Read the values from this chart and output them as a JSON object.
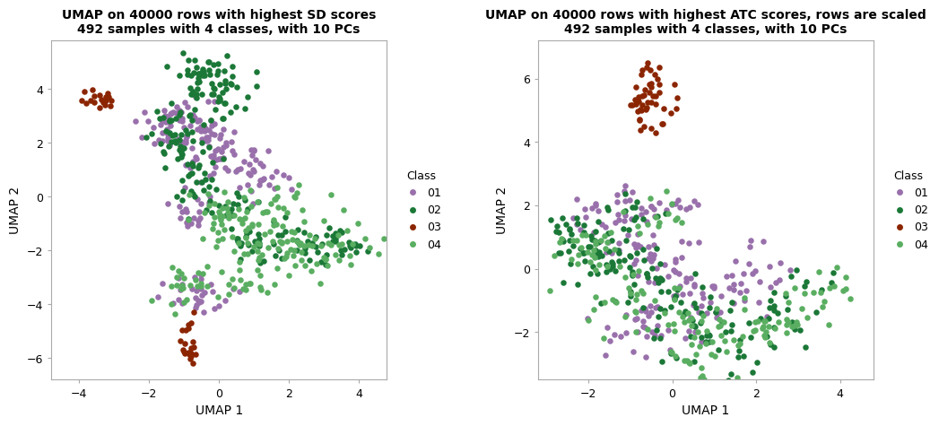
{
  "plot1": {
    "title": "UMAP on 40000 rows with highest SD scores\n492 samples with 4 classes, with 10 PCs",
    "xlabel": "UMAP 1",
    "ylabel": "UMAP 2",
    "xlim": [
      -4.8,
      4.8
    ],
    "ylim": [
      -6.8,
      5.8
    ],
    "xticks": [
      -4,
      -2,
      0,
      2,
      4
    ],
    "yticks": [
      -6,
      -4,
      -2,
      0,
      2,
      4
    ]
  },
  "plot2": {
    "title": "UMAP on 40000 rows with highest ATC scores, rows are scaled\n492 samples with 4 classes, with 10 PCs",
    "xlabel": "UMAP 1",
    "ylabel": "UMAP 2",
    "xlim": [
      -3.2,
      4.8
    ],
    "ylim": [
      -3.5,
      7.2
    ],
    "xticks": [
      -2,
      0,
      2,
      4
    ],
    "yticks": [
      -2,
      0,
      2,
      4,
      6
    ]
  },
  "colors": {
    "01": "#9970AB",
    "02": "#1B7837",
    "03": "#8B2500",
    "04": "#5AAE61"
  },
  "legend_title": "Class",
  "classes": [
    "01",
    "02",
    "03",
    "04"
  ],
  "point_size": 22,
  "alpha": 1.0,
  "bg_color": "#FFFFFF",
  "border_color": "#AAAAAA"
}
